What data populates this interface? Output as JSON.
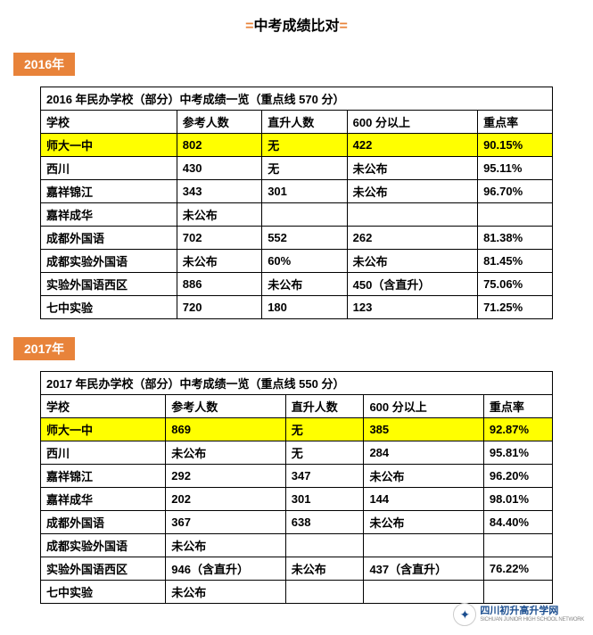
{
  "title": {
    "decor": "=",
    "text": "中考成绩比对"
  },
  "colors": {
    "badge_bg": "#e8833a",
    "highlight": "#ffff00",
    "border": "#000000",
    "bg": "#ffffff"
  },
  "sections": [
    {
      "year_label": "2016年",
      "caption": "2016 年民办学校（部分）中考成绩一览（重点线 570 分）",
      "columns": [
        "学校",
        "参考人数",
        "直升人数",
        "600 分以上",
        "重点率"
      ],
      "rows": [
        {
          "cells": [
            "师大一中",
            "802",
            "无",
            "422",
            "90.15%"
          ],
          "highlight": true
        },
        {
          "cells": [
            "西川",
            "430",
            "无",
            "未公布",
            "95.11%"
          ],
          "highlight": false
        },
        {
          "cells": [
            "嘉祥锦江",
            "343",
            "301",
            "未公布",
            "96.70%"
          ],
          "highlight": false
        },
        {
          "cells": [
            "嘉祥成华",
            "未公布",
            "",
            "",
            ""
          ],
          "highlight": false
        },
        {
          "cells": [
            "成都外国语",
            "702",
            "552",
            "262",
            "81.38%"
          ],
          "highlight": false
        },
        {
          "cells": [
            "成都实验外国语",
            "未公布",
            "60%",
            "未公布",
            "81.45%"
          ],
          "highlight": false
        },
        {
          "cells": [
            "实验外国语西区",
            "886",
            "未公布",
            "450（含直升）",
            "75.06%"
          ],
          "highlight": false
        },
        {
          "cells": [
            "七中实验",
            "720",
            "180",
            "123",
            "71.25%"
          ],
          "highlight": false
        }
      ]
    },
    {
      "year_label": "2017年",
      "caption": "2017 年民办学校（部分）中考成绩一览（重点线 550 分）",
      "columns": [
        "学校",
        "参考人数",
        "直升人数",
        "600 分以上",
        "重点率"
      ],
      "rows": [
        {
          "cells": [
            "师大一中",
            "869",
            "无",
            "385",
            "92.87%"
          ],
          "highlight": true
        },
        {
          "cells": [
            "西川",
            "未公布",
            "无",
            "284",
            "95.81%"
          ],
          "highlight": false
        },
        {
          "cells": [
            "嘉祥锦江",
            "292",
            "347",
            "未公布",
            "96.20%"
          ],
          "highlight": false
        },
        {
          "cells": [
            "嘉祥成华",
            "202",
            "301",
            "144",
            "98.01%"
          ],
          "highlight": false
        },
        {
          "cells": [
            "成都外国语",
            "367",
            "638",
            "未公布",
            "84.40%"
          ],
          "highlight": false
        },
        {
          "cells": [
            "成都实验外国语",
            "未公布",
            "",
            "",
            ""
          ],
          "highlight": false
        },
        {
          "cells": [
            "实验外国语西区",
            "946（含直升）",
            "未公布",
            "437（含直升）",
            "76.22%"
          ],
          "highlight": false
        },
        {
          "cells": [
            "七中实验",
            "未公布",
            "",
            "",
            ""
          ],
          "highlight": false
        }
      ]
    }
  ],
  "watermark": {
    "cn": "四川初升高升学网",
    "en": "SICHUAN JUNIOR HIGH SCHOOL NETWORK"
  }
}
